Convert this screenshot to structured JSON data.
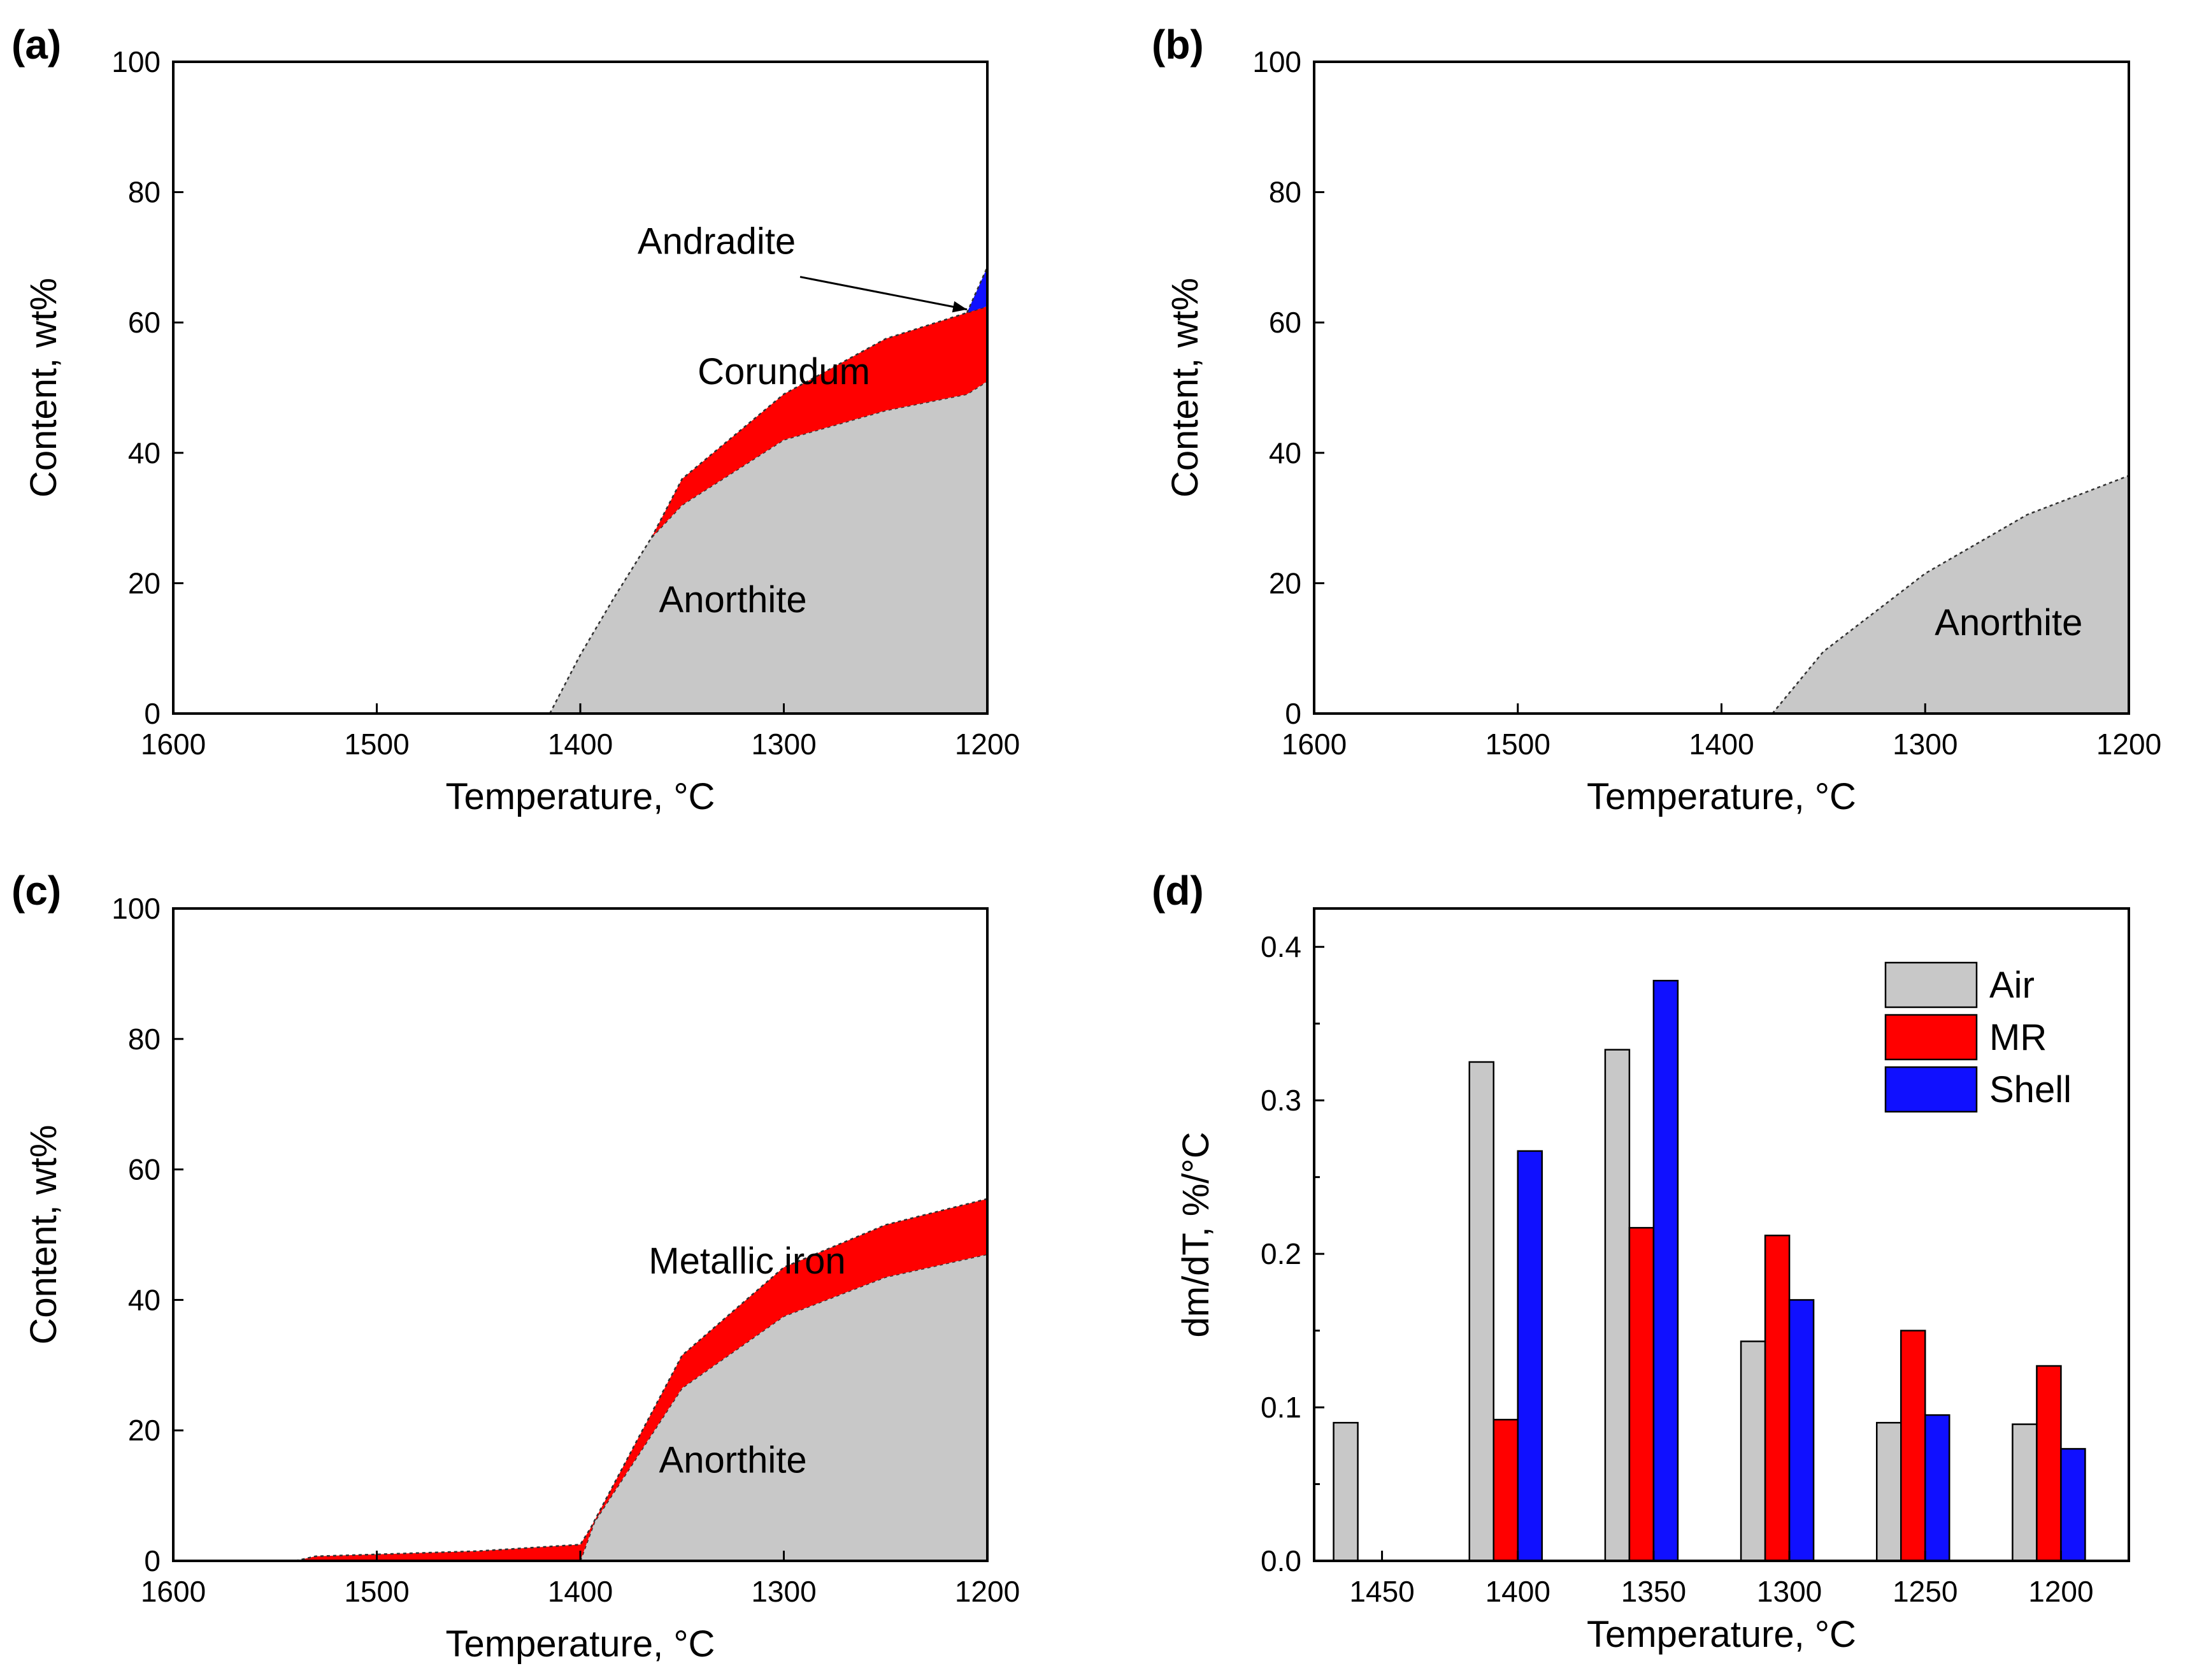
{
  "colors": {
    "grey": "#c8c8c8",
    "red": "#ff0000",
    "blue": "#1010ff"
  },
  "chart_data": [
    {
      "panel": "(a)",
      "type": "area",
      "xlabel": "Temperature, °C",
      "ylabel": "Content, wt%",
      "xlim": [
        1600,
        1200
      ],
      "ylim": [
        0,
        100
      ],
      "xticks": [
        "1600",
        "1500",
        "1400",
        "1300",
        "1200"
      ],
      "yticks": [
        "0",
        "20",
        "40",
        "60",
        "80",
        "100"
      ],
      "series": [
        {
          "name": "Anorthite",
          "color": "grey",
          "label": "Anorthite",
          "label_at": [
            1325,
            17.5
          ],
          "lower": [
            [
              1415,
              0
            ],
            [
              1200,
              0
            ]
          ],
          "upper": [
            [
              1415,
              0
            ],
            [
              1400,
              9
            ],
            [
              1383,
              18
            ],
            [
              1365,
              27
            ],
            [
              1350,
              32
            ],
            [
              1300,
              42
            ],
            [
              1250,
              46.5
            ],
            [
              1210,
              49
            ],
            [
              1200,
              51
            ]
          ]
        },
        {
          "name": "Corundum",
          "color": "red",
          "label": "Corundum",
          "label_at": [
            1300,
            52.5
          ],
          "lower": [
            [
              1365,
              27
            ],
            [
              1350,
              32
            ],
            [
              1300,
              42
            ],
            [
              1250,
              46.5
            ],
            [
              1210,
              49
            ],
            [
              1200,
              51
            ]
          ],
          "upper": [
            [
              1365,
              27
            ],
            [
              1350,
              36
            ],
            [
              1300,
              49
            ],
            [
              1250,
              57.5
            ],
            [
              1210,
              61.5
            ],
            [
              1200,
              62.5
            ]
          ]
        },
        {
          "name": "Andradite",
          "color": "blue",
          "label": "Andradite",
          "label_at": [
            1333,
            72.5
          ],
          "arrow": {
            "from": [
              1292,
              67
            ],
            "to": [
              1210,
              62
            ]
          },
          "lower": [
            [
              1210,
              61.5
            ],
            [
              1200,
              62.5
            ]
          ],
          "upper": [
            [
              1210,
              61.5
            ],
            [
              1200,
              68.5
            ]
          ]
        }
      ]
    },
    {
      "panel": "(b)",
      "type": "area",
      "xlabel": "Temperature, °C",
      "ylabel": "Content, wt%",
      "xlim": [
        1600,
        1200
      ],
      "ylim": [
        0,
        100
      ],
      "xticks": [
        "1600",
        "1500",
        "1400",
        "1300",
        "1200"
      ],
      "yticks": [
        "0",
        "20",
        "40",
        "60",
        "80",
        "100"
      ],
      "series": [
        {
          "name": "Anorthite",
          "color": "grey",
          "label": "Anorthite",
          "label_at": [
            1259,
            14
          ],
          "lower": [
            [
              1375,
              0
            ],
            [
              1200,
              0
            ]
          ],
          "upper": [
            [
              1375,
              0
            ],
            [
              1350,
              9.5
            ],
            [
              1300,
              21.5
            ],
            [
              1250,
              30.5
            ],
            [
              1200,
              36.5
            ]
          ]
        }
      ]
    },
    {
      "panel": "(c)",
      "type": "area",
      "xlabel": "Temperature, °C",
      "ylabel": "Content, wt%",
      "xlim": [
        1600,
        1200
      ],
      "ylim": [
        0,
        100
      ],
      "xticks": [
        "1600",
        "1500",
        "1400",
        "1300",
        "1200"
      ],
      "yticks": [
        "0",
        "20",
        "40",
        "60",
        "80",
        "100"
      ],
      "series": [
        {
          "name": "Anorthite",
          "color": "grey",
          "label": "Anorthite",
          "label_at": [
            1325,
            15.5
          ],
          "lower": [
            [
              1400,
              0
            ],
            [
              1200,
              0
            ]
          ],
          "upper": [
            [
              1400,
              0
            ],
            [
              1393,
              6
            ],
            [
              1350,
              26.5
            ],
            [
              1300,
              37.5
            ],
            [
              1250,
              43.5
            ],
            [
              1200,
              47
            ]
          ]
        },
        {
          "name": "Metallic iron",
          "color": "red",
          "label": "Metallic iron",
          "label_at": [
            1318,
            46
          ],
          "lower": [
            [
              1540,
              0
            ],
            [
              1400,
              0
            ],
            [
              1393,
              6
            ],
            [
              1350,
              26.5
            ],
            [
              1300,
              37.5
            ],
            [
              1250,
              43.5
            ],
            [
              1200,
              47
            ]
          ],
          "upper": [
            [
              1540,
              0
            ],
            [
              1530,
              0.7
            ],
            [
              1500,
              1
            ],
            [
              1450,
              1.5
            ],
            [
              1400,
              2.5
            ],
            [
              1395,
              5
            ],
            [
              1350,
              31.5
            ],
            [
              1300,
              45
            ],
            [
              1250,
              51.5
            ],
            [
              1200,
              55.5
            ]
          ]
        }
      ]
    },
    {
      "panel": "(d)",
      "type": "bar",
      "xlabel": "Temperature, °C",
      "ylabel": "dm/dT, %/°C",
      "categories": [
        "1450",
        "1400",
        "1350",
        "1300",
        "1250",
        "1200"
      ],
      "ylim": [
        0,
        0.425
      ],
      "yticks": [
        "0.0",
        "0.1",
        "0.2",
        "0.3",
        "0.4"
      ],
      "legend": "top-right",
      "series": [
        {
          "name": "Air",
          "color": "grey",
          "values": [
            0.09,
            0.325,
            0.333,
            0.143,
            0.09,
            0.089
          ]
        },
        {
          "name": "MR",
          "color": "red",
          "values": [
            null,
            0.092,
            0.217,
            0.212,
            0.15,
            0.127
          ]
        },
        {
          "name": "Shell",
          "color": "blue",
          "values": [
            null,
            0.267,
            0.378,
            0.17,
            0.095,
            0.073
          ]
        }
      ]
    }
  ]
}
